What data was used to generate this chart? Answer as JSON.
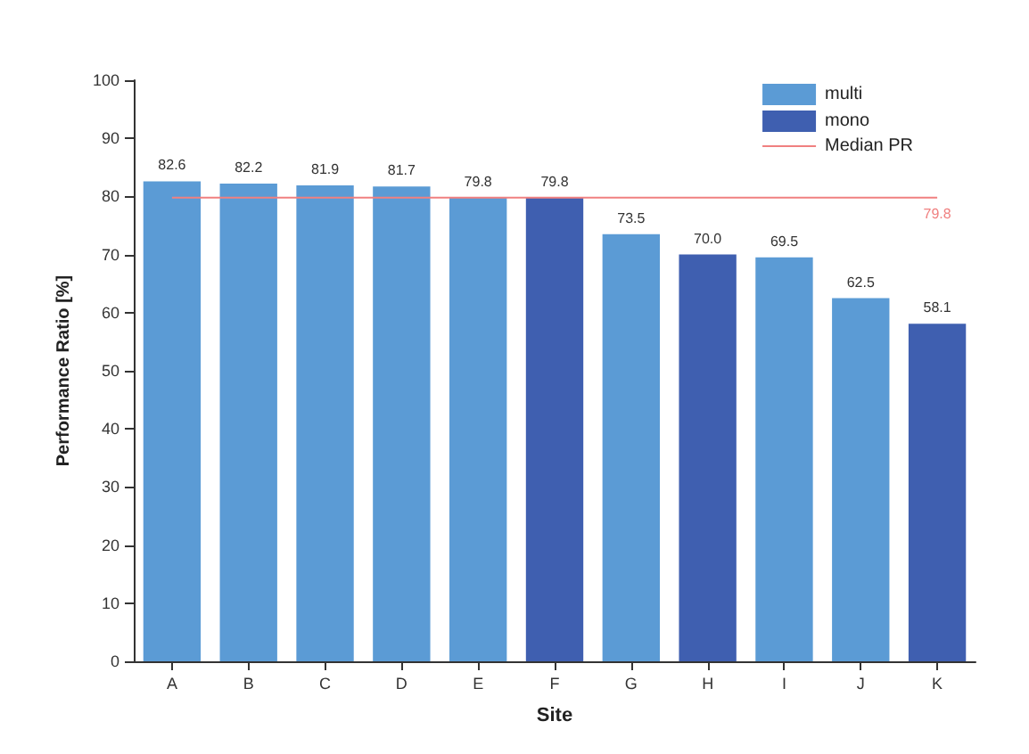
{
  "chart_data": {
    "type": "bar",
    "xlabel": "Site",
    "ylabel": "Performance Ratio [%]",
    "categories": [
      "A",
      "B",
      "C",
      "D",
      "E",
      "F",
      "G",
      "H",
      "I",
      "J",
      "K"
    ],
    "series": [
      {
        "name": "multi",
        "color": "#5b9bd5",
        "values": [
          82.6,
          82.2,
          81.9,
          81.7,
          79.8,
          null,
          73.5,
          null,
          69.5,
          62.5,
          null
        ],
        "value_labels": [
          "82.6",
          "82.2",
          "81.9",
          "81.7",
          "79.8",
          null,
          "73.5",
          null,
          "69.5",
          "62.5",
          null
        ]
      },
      {
        "name": "mono",
        "color": "#3f5fb0",
        "values": [
          null,
          null,
          null,
          null,
          null,
          79.8,
          null,
          70.0,
          null,
          null,
          58.1
        ],
        "value_labels": [
          null,
          null,
          null,
          null,
          null,
          "79.8",
          null,
          "70.0",
          null,
          null,
          "58.1"
        ]
      },
      {
        "name": "Median PR",
        "type": "line",
        "color": "#f08080",
        "marker": "none",
        "values": [
          79.8,
          79.8,
          79.8,
          79.8,
          79.8,
          79.8,
          79.8,
          79.8,
          79.8,
          79.8,
          79.8
        ],
        "value_labels": [
          null,
          null,
          null,
          null,
          null,
          null,
          null,
          null,
          null,
          null,
          "79.8"
        ]
      }
    ],
    "ylim": [
      0,
      100
    ],
    "yticks": [
      0,
      10,
      20,
      30,
      40,
      50,
      60,
      70,
      80,
      90,
      100
    ],
    "grid": false,
    "legend": "top right"
  }
}
